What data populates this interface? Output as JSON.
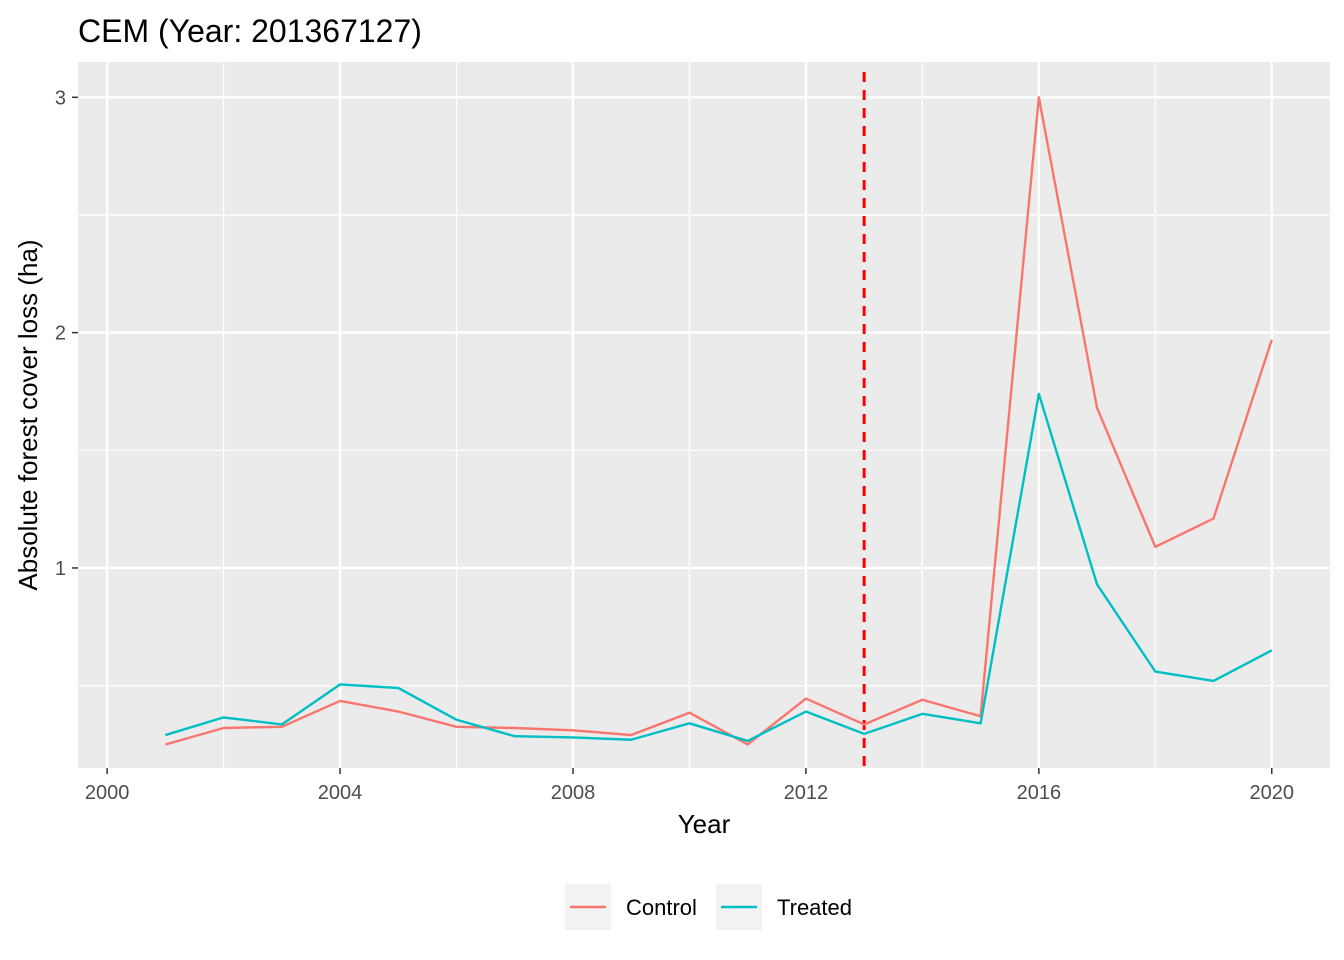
{
  "chart_data": {
    "type": "line",
    "title": "CEM (Year: 201367127)",
    "xlabel": "Year",
    "ylabel": "Absolute forest cover loss (ha)",
    "xlim": [
      1999.5,
      2021.0
    ],
    "ylim": [
      0.15,
      3.15
    ],
    "x_ticks": [
      2000,
      2004,
      2008,
      2012,
      2016,
      2020
    ],
    "x_tick_labels": [
      "2000",
      "2004",
      "2008",
      "2012",
      "2016",
      "2020"
    ],
    "y_ticks": [
      1,
      2,
      3
    ],
    "y_tick_labels": [
      "1",
      "2",
      "3"
    ],
    "grid": true,
    "legend_position": "bottom",
    "reference_line": {
      "x": 2013,
      "style": "dashed",
      "color": "#ff0000"
    },
    "x": [
      2001,
      2002,
      2003,
      2004,
      2005,
      2006,
      2007,
      2008,
      2009,
      2010,
      2011,
      2012,
      2013,
      2014,
      2015,
      2016,
      2017,
      2018,
      2019,
      2020
    ],
    "series": [
      {
        "name": "Control",
        "color": "#f8766d",
        "values": [
          0.25,
          0.32,
          0.325,
          0.435,
          0.39,
          0.325,
          0.32,
          0.31,
          0.29,
          0.385,
          0.25,
          0.445,
          0.335,
          0.44,
          0.37,
          3.0,
          1.68,
          1.09,
          1.21,
          1.97
        ]
      },
      {
        "name": "Treated",
        "color": "#00bfc4",
        "values": [
          0.29,
          0.365,
          0.335,
          0.505,
          0.49,
          0.355,
          0.285,
          0.28,
          0.27,
          0.34,
          0.265,
          0.39,
          0.295,
          0.38,
          0.34,
          1.74,
          0.93,
          0.56,
          0.52,
          0.65
        ]
      }
    ]
  }
}
